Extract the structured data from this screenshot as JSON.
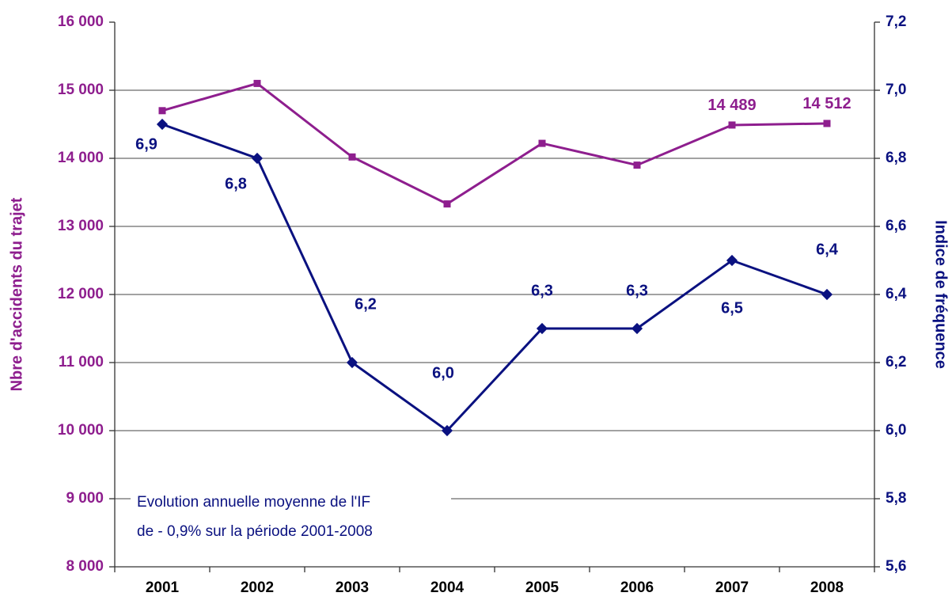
{
  "chart_data": {
    "type": "line",
    "categories": [
      "2001",
      "2002",
      "2003",
      "2004",
      "2005",
      "2006",
      "2007",
      "2008"
    ],
    "series": [
      {
        "name": "Nbre d'accidents du trajet",
        "color": "#8e1e8e",
        "axis": "y",
        "values": [
          14700,
          15100,
          14020,
          13330,
          14220,
          13900,
          14489,
          14512
        ],
        "value_labels": [
          null,
          null,
          null,
          null,
          null,
          null,
          "14 489",
          "14 512"
        ]
      },
      {
        "name": "Indice de fréquence",
        "color": "#0a1180",
        "axis": "y2",
        "values": [
          6.9,
          6.8,
          6.2,
          6.0,
          6.3,
          6.3,
          6.5,
          6.4
        ],
        "value_labels": [
          "6,9",
          "6,8",
          "6,2",
          "6,0",
          "6,3",
          "6,3",
          "6,5",
          "6,4"
        ]
      }
    ],
    "ylabel": "Nbre d'accidents du trajet",
    "y2label": "Indice de fréquence",
    "ylim": [
      8000,
      16000
    ],
    "yticks": [
      {
        "value": 8000,
        "label": "8 000"
      },
      {
        "value": 9000,
        "label": "9 000"
      },
      {
        "value": 10000,
        "label": "10 000"
      },
      {
        "value": 11000,
        "label": "11 000"
      },
      {
        "value": 12000,
        "label": "12 000"
      },
      {
        "value": 13000,
        "label": "13 000"
      },
      {
        "value": 14000,
        "label": "14 000"
      },
      {
        "value": 15000,
        "label": "15 000"
      },
      {
        "value": 16000,
        "label": "16 000"
      }
    ],
    "y2lim": [
      5.6,
      7.2
    ],
    "y2ticks": [
      {
        "value": 5.6,
        "label": "5,6"
      },
      {
        "value": 5.8,
        "label": "5,8"
      },
      {
        "value": 6.0,
        "label": "6,0"
      },
      {
        "value": 6.2,
        "label": "6,2"
      },
      {
        "value": 6.4,
        "label": "6,4"
      },
      {
        "value": 6.6,
        "label": "6,6"
      },
      {
        "value": 6.8,
        "label": "6,8"
      },
      {
        "value": 7.0,
        "label": "7,0"
      },
      {
        "value": 7.2,
        "label": "7,2"
      }
    ],
    "annotations": [
      "Evolution annuelle moyenne de l'IF",
      "de - 0,9% sur la période 2001-2008"
    ],
    "grid": true
  }
}
